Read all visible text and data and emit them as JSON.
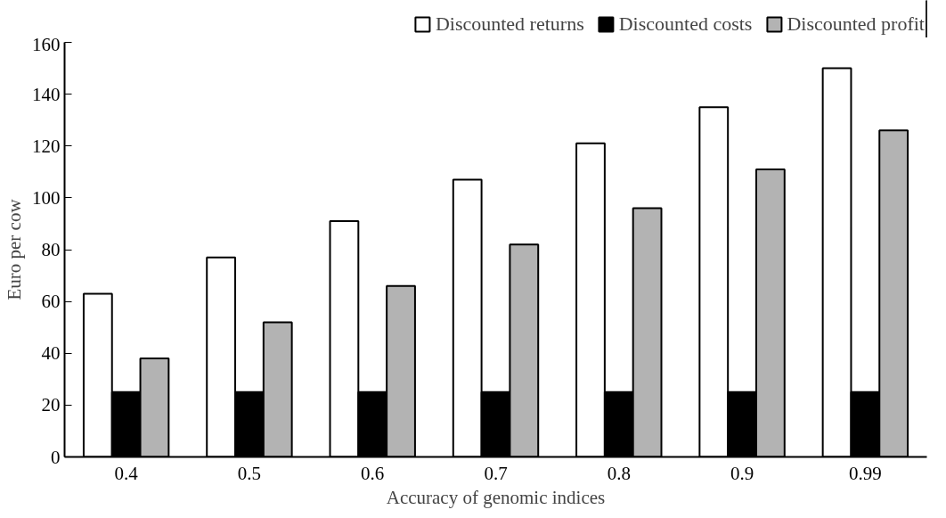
{
  "chart_data": {
    "type": "bar",
    "xlabel": "Accuracy of genomic indices",
    "ylabel": "Euro per cow",
    "categories": [
      "0.4",
      "0.5",
      "0.6",
      "0.7",
      "0.8",
      "0.9",
      "0.99"
    ],
    "series": [
      {
        "name": "Discounted returns",
        "color": "#ffffff",
        "values": [
          63,
          77,
          91,
          107,
          121,
          135,
          150
        ]
      },
      {
        "name": "Discounted costs",
        "color": "#000000",
        "values": [
          25,
          25,
          25,
          25,
          25,
          25,
          25
        ]
      },
      {
        "name": "Discounted profit",
        "color": "#b3b3b3",
        "values": [
          38,
          52,
          66,
          82,
          96,
          111,
          126
        ]
      }
    ],
    "ylim": [
      0,
      160
    ],
    "yticks": [
      0,
      20,
      40,
      60,
      80,
      100,
      120,
      140,
      160
    ],
    "grid": false,
    "legend": "top"
  }
}
